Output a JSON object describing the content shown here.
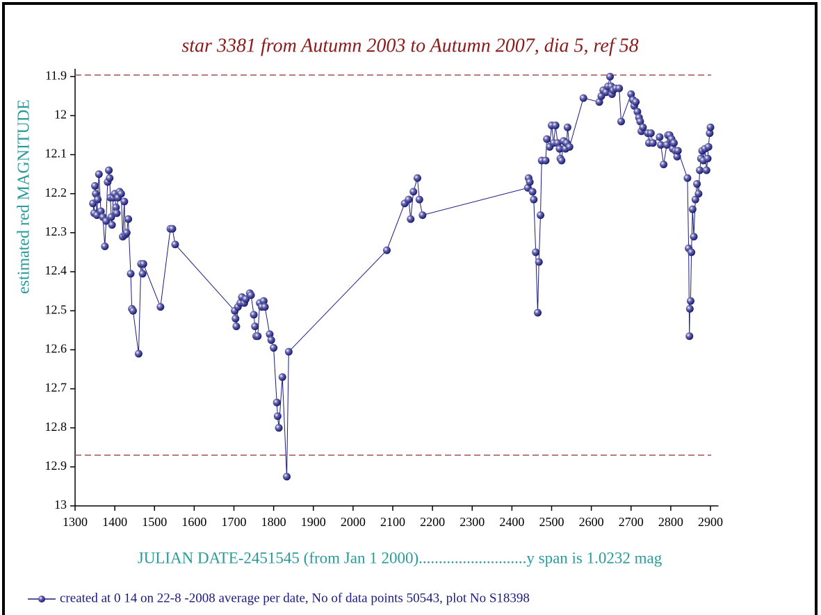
{
  "chart_data": {
    "type": "line",
    "title": "star 3381 from Autumn 2003 to Autumn 2007, dia 5, ref 58",
    "y_label": "estimated red MAGNITUDE",
    "x_label": "JULIAN DATE-2451545 (from Jan 1 2000)...........................y span is 1.0232 mag",
    "xlim": [
      1300,
      2920
    ],
    "ylim": [
      11.88,
      13
    ],
    "y_inverted": true,
    "xticks": [
      1300,
      1400,
      1500,
      1600,
      1700,
      1800,
      1900,
      2000,
      2100,
      2200,
      2300,
      2400,
      2500,
      2600,
      2700,
      2800,
      2900
    ],
    "yticks": [
      11.9,
      12,
      12.1,
      12.2,
      12.3,
      12.4,
      12.5,
      12.6,
      12.7,
      12.8,
      12.9,
      13
    ],
    "reference_lines": [
      11.896,
      12.87
    ],
    "reference_color": "#a05050",
    "series": [
      {
        "name": "created at 0 14 on 22-8 -2008 average per date, No of data points 50543,  plot No S18398",
        "color": "#1a1a80",
        "x": [
          1345,
          1348,
          1350,
          1352,
          1355,
          1357,
          1360,
          1365,
          1370,
          1375,
          1378,
          1382,
          1385,
          1387,
          1389,
          1391,
          1393,
          1396,
          1400,
          1403,
          1405,
          1408,
          1412,
          1416,
          1420,
          1424,
          1426,
          1430,
          1434,
          1440,
          1443,
          1446,
          1460,
          1466,
          1470,
          1472,
          1515,
          1540,
          1545,
          1552,
          1702,
          1704,
          1706,
          1710,
          1716,
          1720,
          1726,
          1730,
          1740,
          1743,
          1750,
          1753,
          1756,
          1760,
          1765,
          1770,
          1775,
          1778,
          1790,
          1794,
          1800,
          1808,
          1810,
          1813,
          1822,
          1833,
          1838,
          2085,
          2130,
          2140,
          2145,
          2152,
          2162,
          2167,
          2175,
          2440,
          2442,
          2445,
          2452,
          2455,
          2460,
          2465,
          2468,
          2472,
          2475,
          2485,
          2488,
          2495,
          2500,
          2505,
          2510,
          2515,
          2520,
          2522,
          2525,
          2530,
          2535,
          2538,
          2540,
          2545,
          2580,
          2620,
          2625,
          2630,
          2637,
          2642,
          2647,
          2650,
          2652,
          2655,
          2662,
          2670,
          2675,
          2700,
          2705,
          2708,
          2712,
          2716,
          2720,
          2723,
          2726,
          2730,
          2742,
          2745,
          2750,
          2755,
          2772,
          2775,
          2782,
          2790,
          2793,
          2797,
          2802,
          2805,
          2808,
          2812,
          2816,
          2818,
          2842,
          2845,
          2847,
          2848,
          2850,
          2852,
          2855,
          2858,
          2862,
          2866,
          2870,
          2873,
          2876,
          2879,
          2882,
          2886,
          2890,
          2893,
          2895,
          2898,
          2900
        ],
        "values": [
          12.225,
          12.25,
          12.18,
          12.2,
          12.255,
          12.215,
          12.15,
          12.245,
          12.26,
          12.335,
          12.27,
          12.17,
          12.14,
          12.16,
          12.21,
          12.26,
          12.28,
          12.21,
          12.2,
          12.235,
          12.25,
          12.21,
          12.195,
          12.2,
          12.31,
          12.22,
          12.305,
          12.3,
          12.265,
          12.405,
          12.495,
          12.5,
          12.61,
          12.38,
          12.405,
          12.38,
          12.49,
          12.29,
          12.29,
          12.33,
          12.5,
          12.52,
          12.54,
          12.49,
          12.48,
          12.465,
          12.48,
          12.47,
          12.455,
          12.46,
          12.51,
          12.54,
          12.565,
          12.565,
          12.48,
          12.49,
          12.475,
          12.49,
          12.56,
          12.575,
          12.595,
          12.735,
          12.77,
          12.8,
          12.67,
          12.925,
          12.605,
          12.345,
          12.225,
          12.215,
          12.265,
          12.195,
          12.16,
          12.215,
          12.255,
          12.185,
          12.16,
          12.17,
          12.195,
          12.215,
          12.35,
          12.505,
          12.375,
          12.255,
          12.115,
          12.115,
          12.06,
          12.08,
          12.025,
          12.07,
          12.025,
          12.07,
          12.085,
          12.11,
          12.115,
          12.065,
          12.085,
          12.07,
          12.03,
          12.08,
          11.955,
          11.965,
          11.95,
          11.935,
          11.94,
          11.925,
          11.9,
          11.925,
          11.945,
          11.935,
          11.93,
          11.93,
          12.015,
          11.945,
          11.96,
          11.975,
          11.965,
          11.99,
          12.005,
          12.015,
          12.04,
          12.03,
          12.045,
          12.07,
          12.045,
          12.07,
          12.055,
          12.075,
          12.125,
          12.075,
          12.05,
          12.05,
          12.06,
          12.085,
          12.07,
          12.09,
          12.105,
          12.09,
          12.16,
          12.34,
          12.565,
          12.495,
          12.475,
          12.35,
          12.24,
          12.31,
          12.215,
          12.175,
          12.2,
          12.14,
          12.11,
          12.09,
          12.115,
          12.085,
          12.14,
          12.11,
          12.08,
          12.045,
          12.03
        ]
      }
    ]
  }
}
